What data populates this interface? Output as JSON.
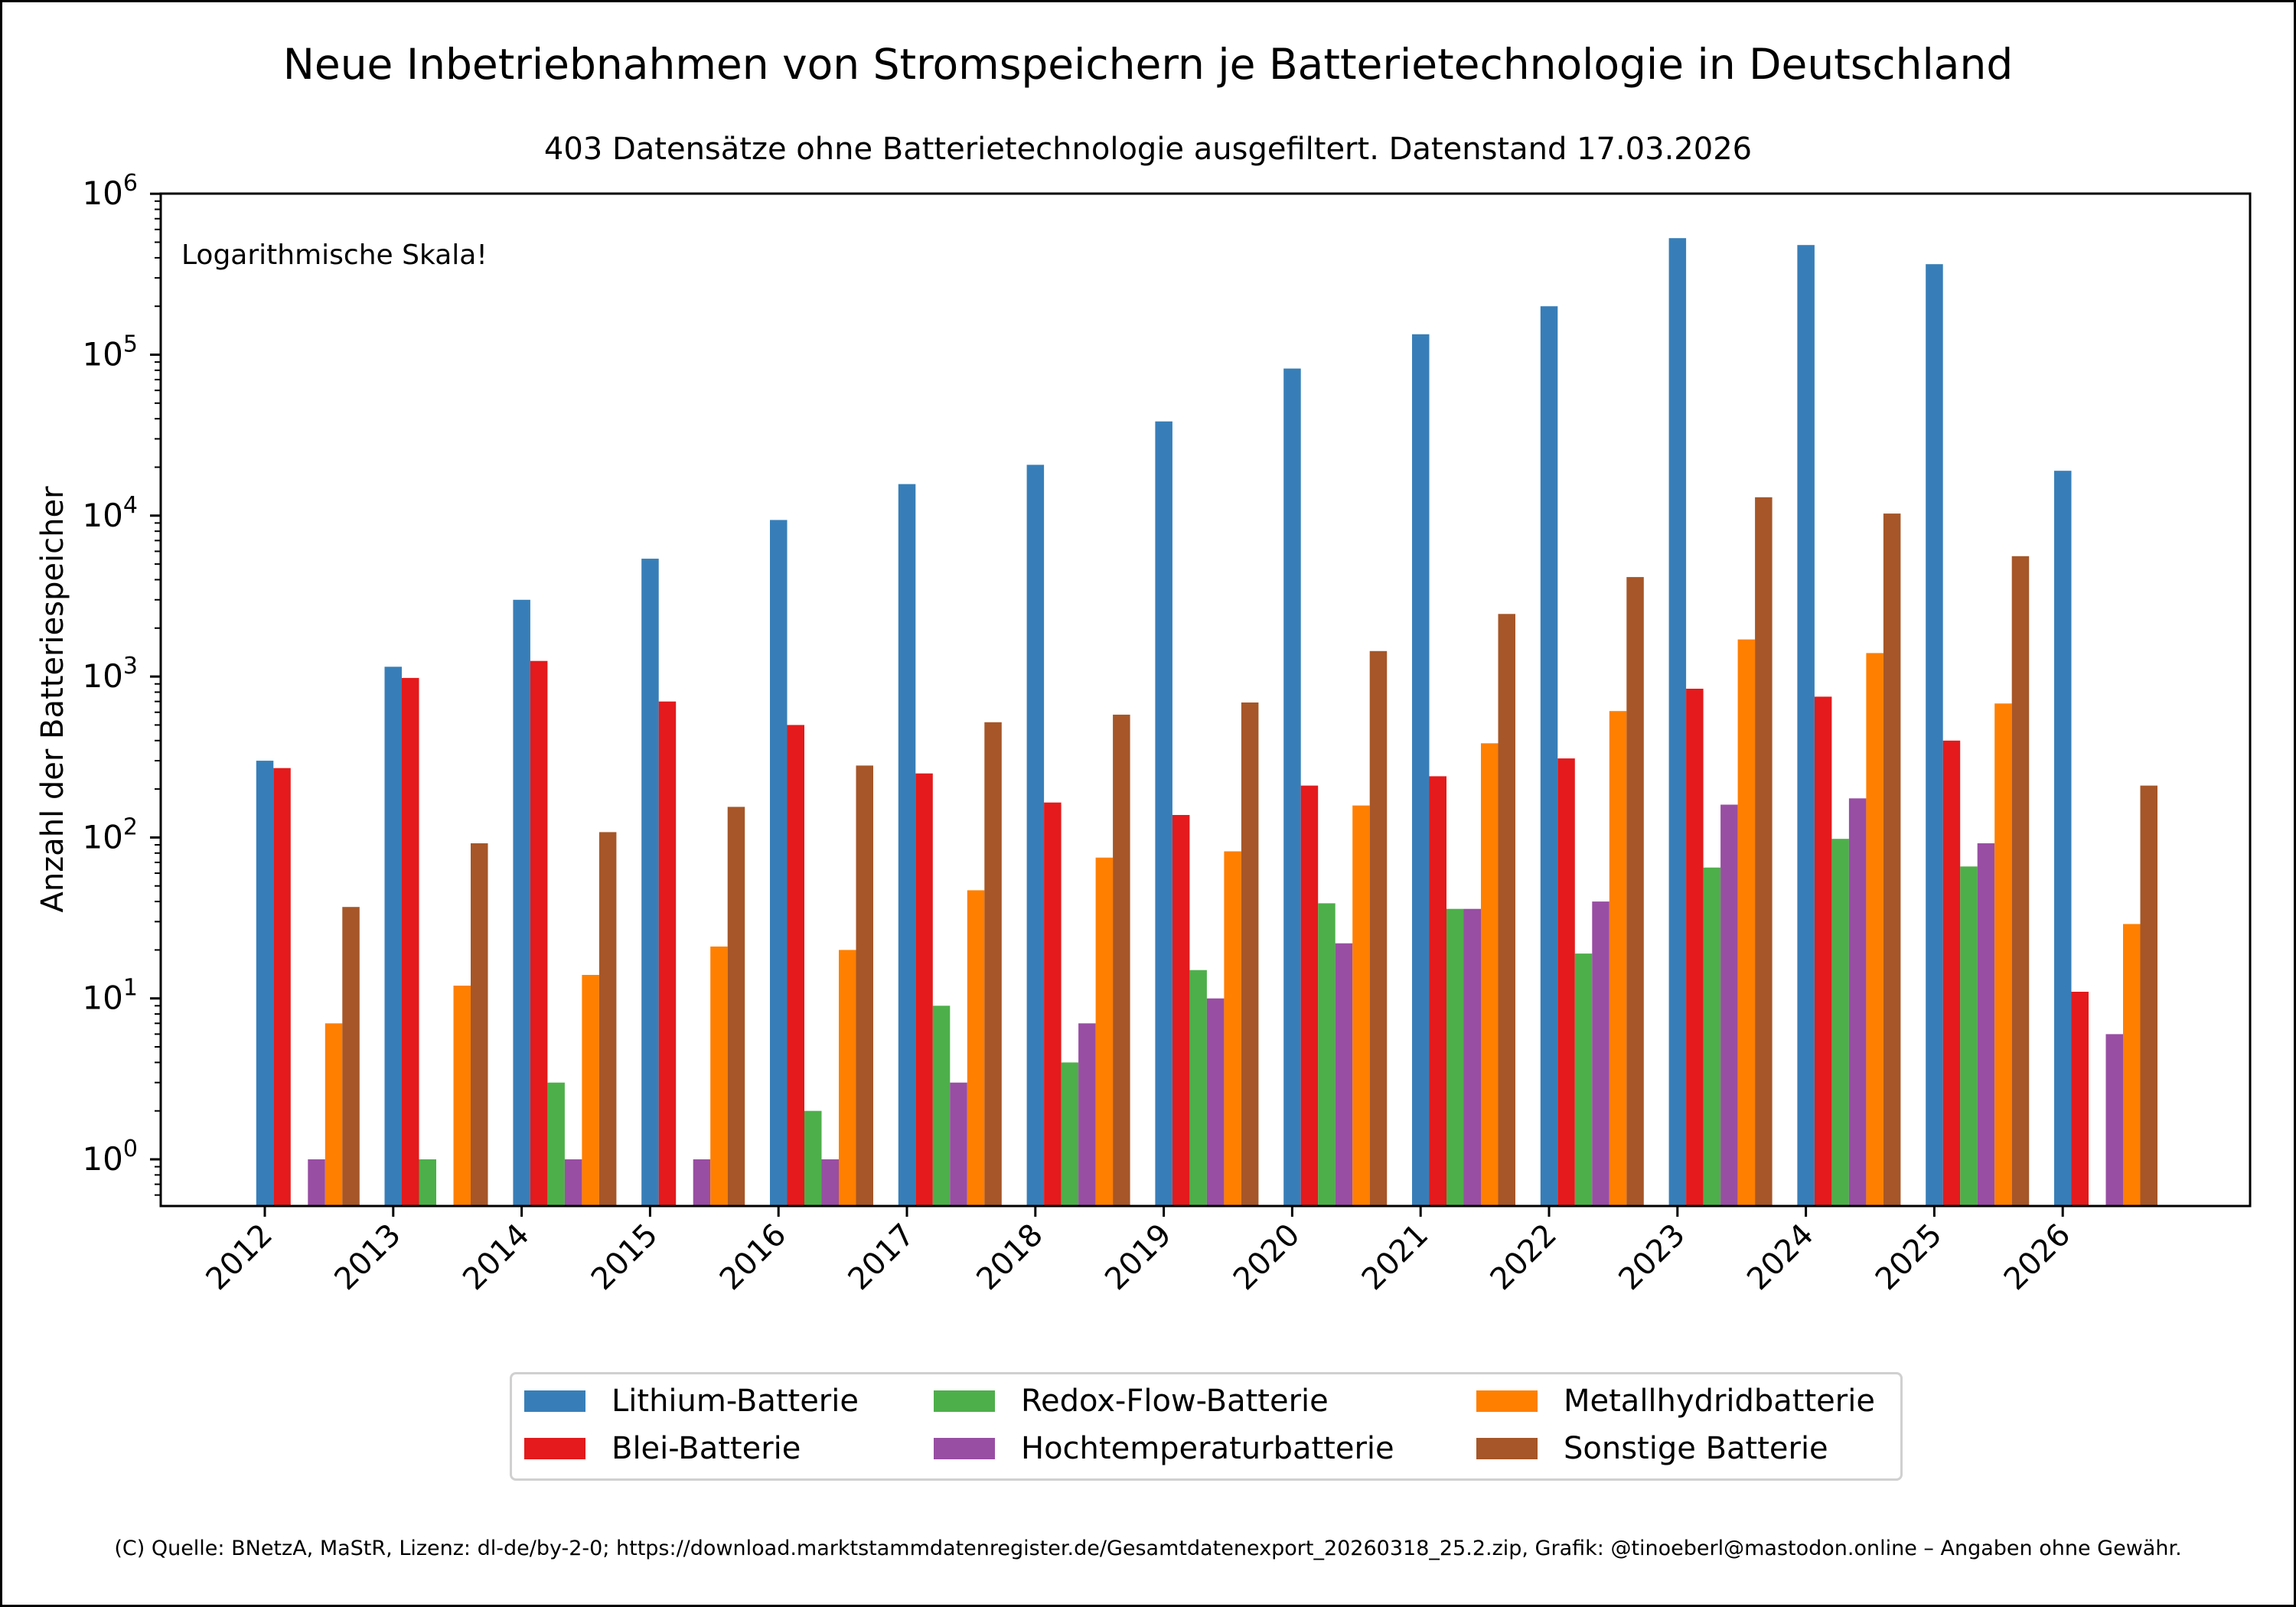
{
  "chart_data": {
    "type": "bar",
    "title": "Neue Inbetriebnahmen von Stromspeichern je Batterietechnologie in Deutschland",
    "subtitle": "403 Datensätze ohne Batterietechnologie ausgefiltert. Datenstand 17.03.2026",
    "annotation": "Logarithmische Skala!",
    "xlabel": "",
    "ylabel": "Anzahl der Batteriespeicher",
    "yscale": "log",
    "ylim": [
      0.5,
      1000000
    ],
    "ytick_labels": [
      {
        "exp": "0",
        "value": 1
      },
      {
        "exp": "1",
        "value": 10
      },
      {
        "exp": "2",
        "value": 100
      },
      {
        "exp": "3",
        "value": 1000
      },
      {
        "exp": "4",
        "value": 10000
      },
      {
        "exp": "5",
        "value": 100000
      },
      {
        "exp": "6",
        "value": 1000000
      }
    ],
    "categories": [
      "2012",
      "2013",
      "2014",
      "2015",
      "2016",
      "2017",
      "2018",
      "2019",
      "2020",
      "2021",
      "2022",
      "2023",
      "2024",
      "2025",
      "2026"
    ],
    "grid": false,
    "legend_position": "bottom-center",
    "series": [
      {
        "name": "Lithium-Batterie",
        "color": "#377eb8",
        "values": [
          300,
          1150,
          3000,
          5400,
          9400,
          15700,
          20700,
          38500,
          82000,
          134000,
          200000,
          530000,
          480000,
          365000,
          19000
        ]
      },
      {
        "name": "Blei-Batterie",
        "color": "#e41a1c",
        "values": [
          270,
          980,
          1250,
          700,
          500,
          250,
          165,
          138,
          210,
          240,
          310,
          840,
          750,
          400,
          11
        ]
      },
      {
        "name": "Redox-Flow-Batterie",
        "color": "#4daf4a",
        "values": [
          0,
          1,
          3,
          0,
          2,
          9,
          4,
          15,
          39,
          36,
          19,
          65,
          98,
          66,
          0
        ]
      },
      {
        "name": "Hochtemperaturbatterie",
        "color": "#984ea3",
        "values": [
          1,
          0,
          1,
          1,
          1,
          3,
          7,
          10,
          22,
          36,
          40,
          160,
          175,
          92,
          6
        ]
      },
      {
        "name": "Metallhydridbatterie",
        "color": "#ff7f00",
        "values": [
          7,
          12,
          14,
          21,
          20,
          47,
          75,
          82,
          158,
          385,
          610,
          1700,
          1400,
          680,
          29
        ]
      },
      {
        "name": "Sonstige Batterie",
        "color": "#a65628",
        "values": [
          37,
          92,
          108,
          155,
          280,
          520,
          580,
          690,
          1440,
          2450,
          4150,
          13000,
          10300,
          5600,
          210
        ]
      }
    ]
  },
  "legend": {
    "items": [
      {
        "label": "Lithium-Batterie",
        "color": "#377eb8"
      },
      {
        "label": "Blei-Batterie",
        "color": "#e41a1c"
      },
      {
        "label": "Redox-Flow-Batterie",
        "color": "#4daf4a"
      },
      {
        "label": "Hochtemperaturbatterie",
        "color": "#984ea3"
      },
      {
        "label": "Metallhydridbatterie",
        "color": "#ff7f00"
      },
      {
        "label": "Sonstige Batterie",
        "color": "#a65628"
      }
    ]
  },
  "footer": {
    "credit": "(C) Quelle: BNetzA, MaStR, Lizenz: dl-de/by-2-0; https://download.marktstammdatenregister.de/Gesamtdatenexport_20260318_25.2.zip, Grafik: @tinoeberl@mastodon.online – Angaben ohne Gewähr."
  }
}
